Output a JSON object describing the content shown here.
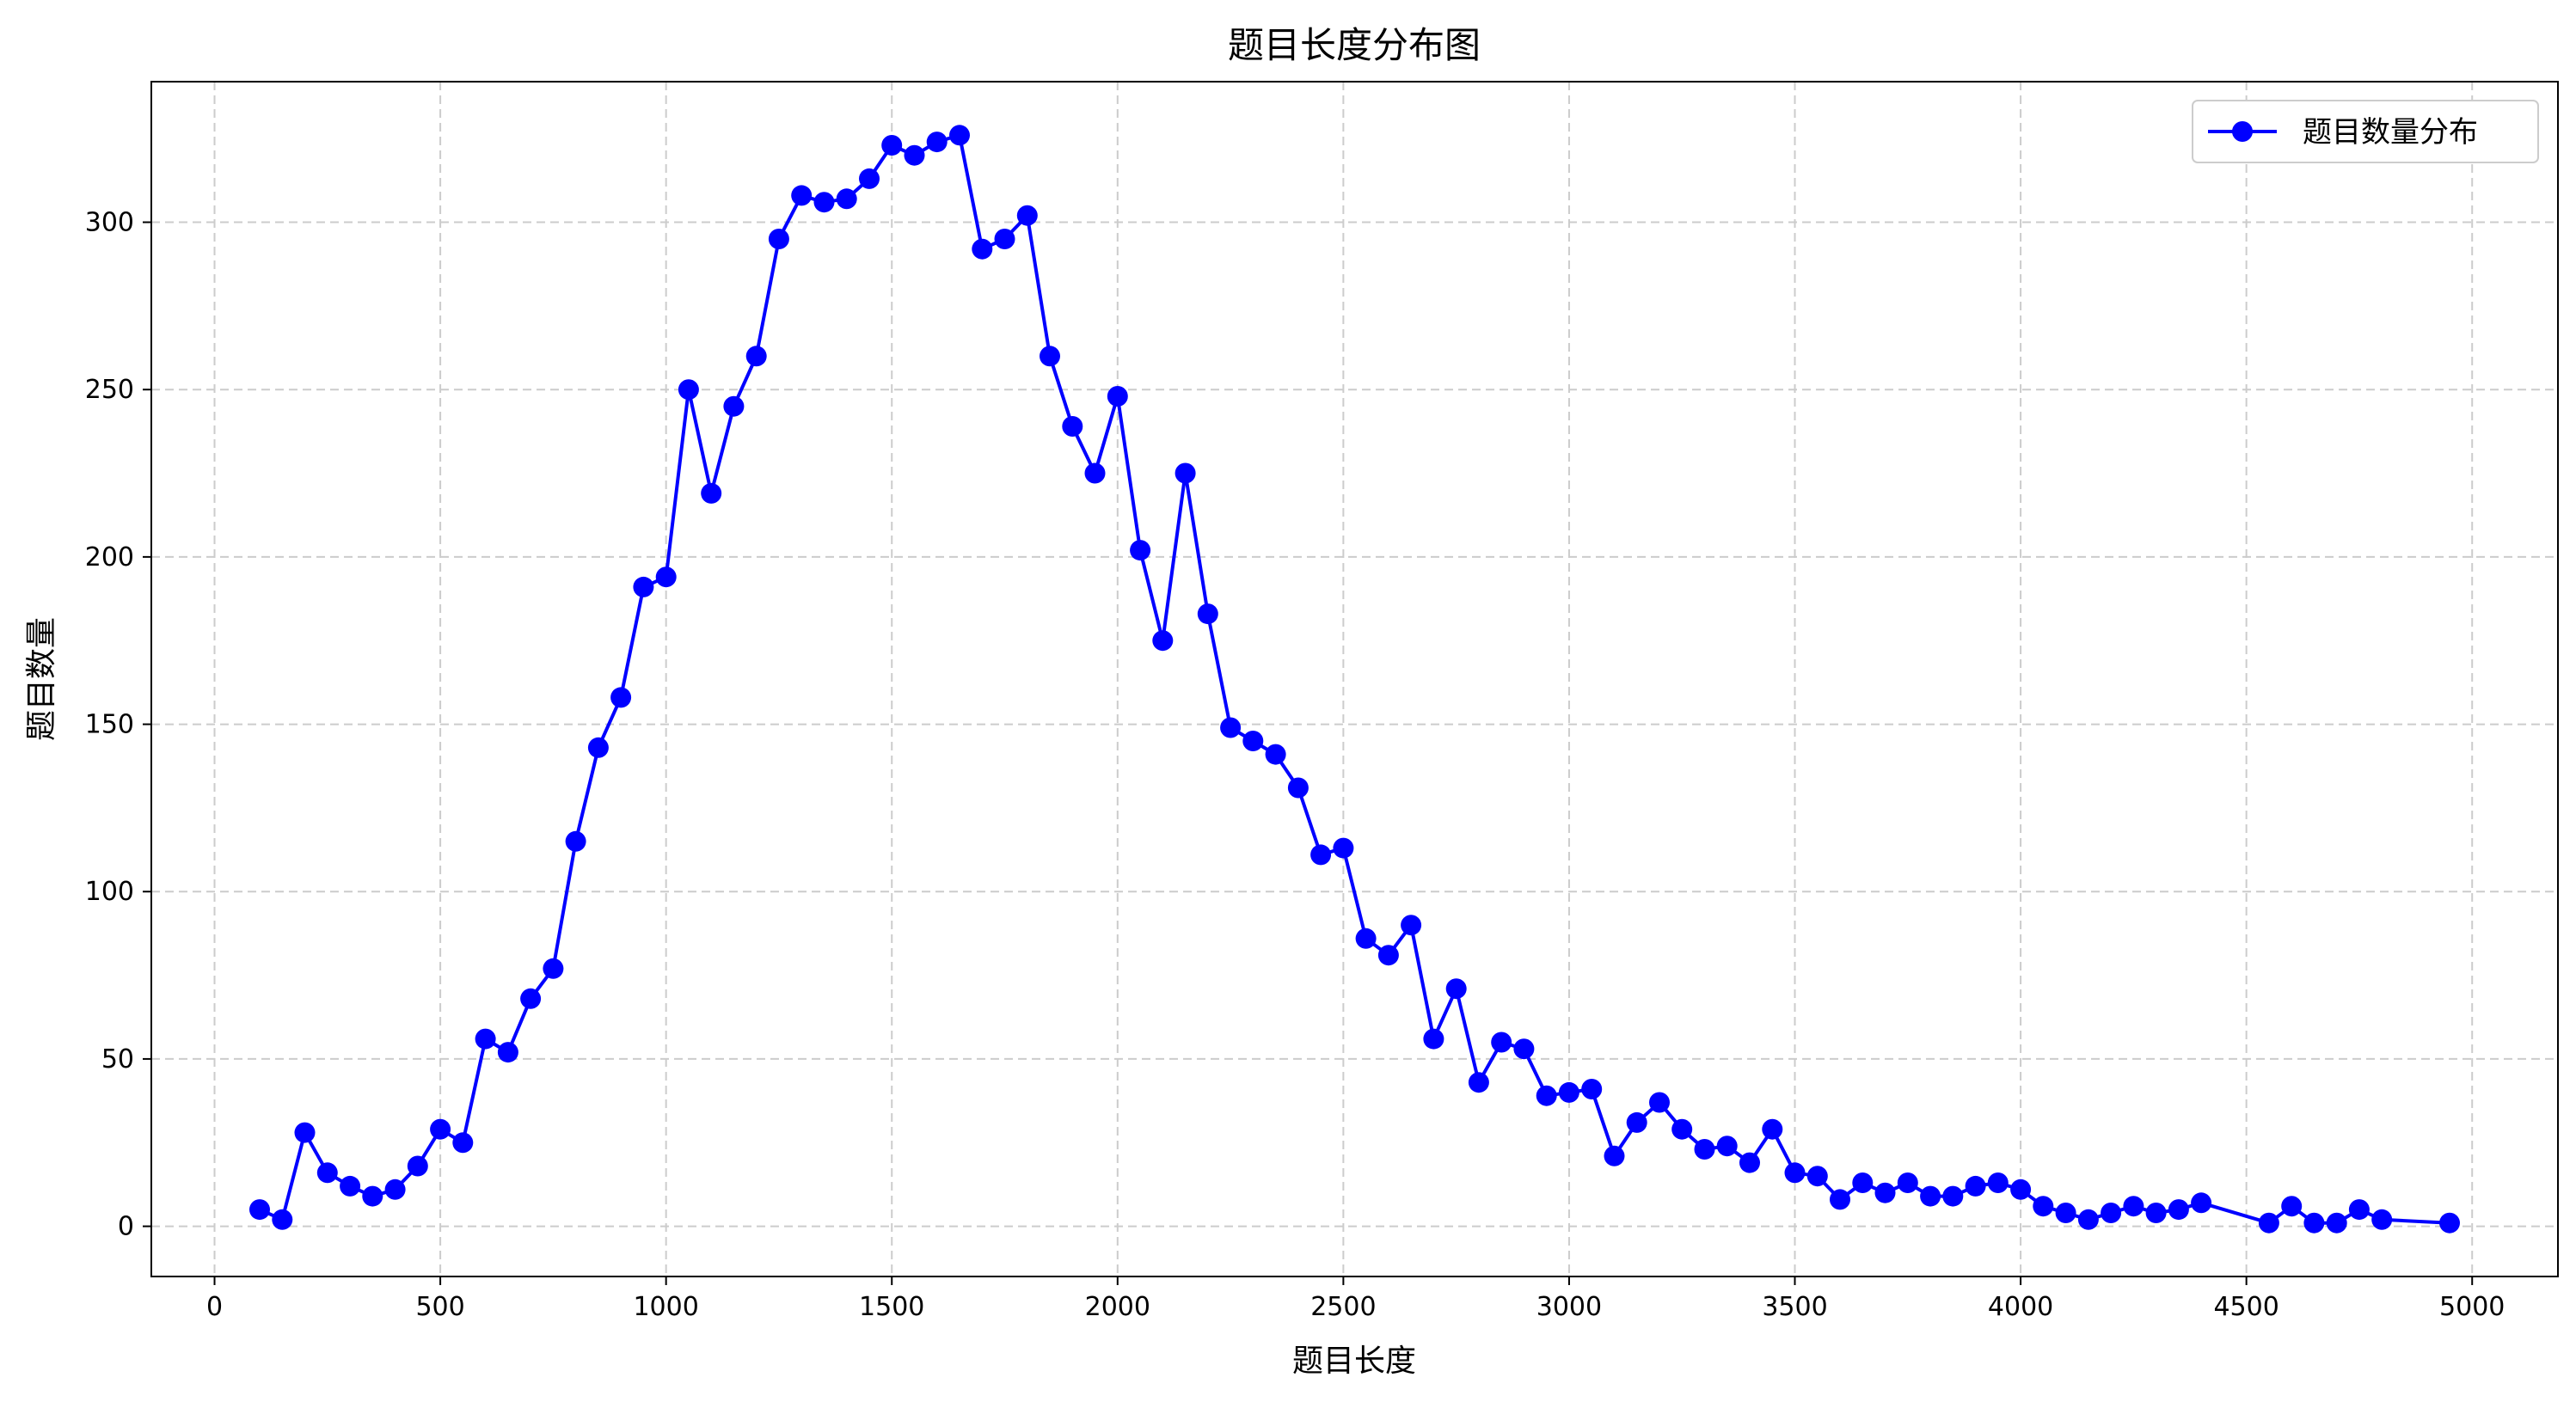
{
  "chart_data": {
    "type": "line",
    "title": "题目长度分布图",
    "xlabel": "题目长度",
    "ylabel": "题目数量",
    "xlim": [
      -140,
      5190
    ],
    "ylim": [
      -15,
      342
    ],
    "xticks": [
      0,
      500,
      1000,
      1500,
      2000,
      2500,
      3000,
      3500,
      4000,
      4500,
      5000
    ],
    "yticks": [
      0,
      50,
      100,
      150,
      200,
      250,
      300
    ],
    "grid": true,
    "legend_position": "top-right",
    "series": [
      {
        "name": "题目数量分布",
        "color": "#0000ff",
        "marker": "circle",
        "x": [
          100,
          150,
          200,
          250,
          300,
          350,
          400,
          450,
          500,
          550,
          600,
          650,
          700,
          750,
          800,
          850,
          900,
          950,
          1000,
          1050,
          1100,
          1150,
          1200,
          1250,
          1300,
          1350,
          1400,
          1450,
          1500,
          1550,
          1600,
          1650,
          1700,
          1750,
          1800,
          1850,
          1900,
          1950,
          2000,
          2050,
          2100,
          2150,
          2200,
          2250,
          2300,
          2350,
          2400,
          2450,
          2500,
          2550,
          2600,
          2650,
          2700,
          2750,
          2800,
          2850,
          2900,
          2950,
          3000,
          3050,
          3100,
          3150,
          3200,
          3250,
          3300,
          3350,
          3400,
          3450,
          3500,
          3550,
          3600,
          3650,
          3700,
          3750,
          3800,
          3850,
          3900,
          3950,
          4000,
          4050,
          4100,
          4150,
          4200,
          4250,
          4300,
          4350,
          4400,
          4550,
          4600,
          4650,
          4700,
          4750,
          4800,
          4950
        ],
        "y": [
          5,
          2,
          28,
          16,
          12,
          9,
          11,
          18,
          29,
          25,
          56,
          52,
          68,
          77,
          115,
          143,
          158,
          191,
          194,
          250,
          219,
          245,
          260,
          295,
          308,
          306,
          307,
          313,
          323,
          320,
          324,
          326,
          292,
          295,
          302,
          260,
          239,
          225,
          248,
          202,
          175,
          225,
          183,
          149,
          145,
          141,
          131,
          111,
          113,
          86,
          81,
          90,
          56,
          71,
          43,
          55,
          53,
          39,
          40,
          41,
          21,
          31,
          37,
          29,
          23,
          24,
          19,
          29,
          16,
          15,
          8,
          13,
          10,
          13,
          9,
          9,
          12,
          13,
          11,
          6,
          4,
          2,
          4,
          6,
          4,
          5,
          7,
          1,
          6,
          1,
          1,
          5,
          2,
          1
        ]
      }
    ]
  }
}
